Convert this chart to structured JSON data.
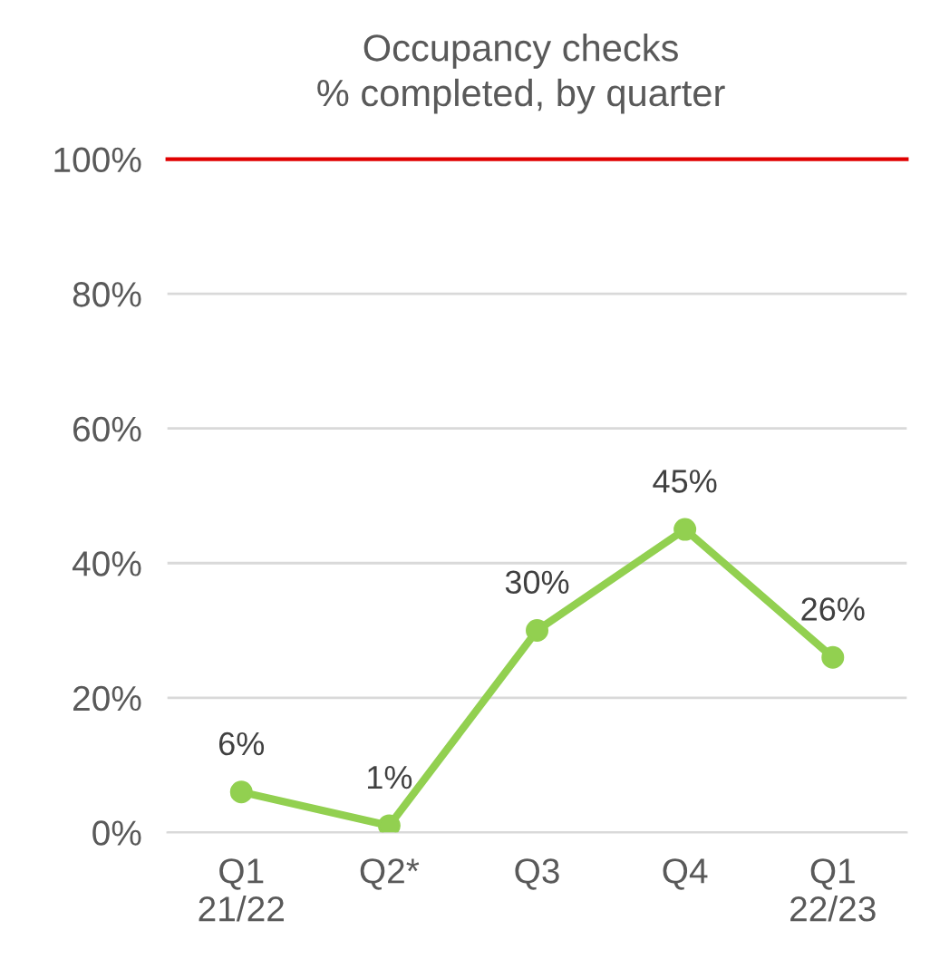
{
  "chart_data": {
    "type": "line",
    "title": "Occupancy checks",
    "subtitle": "% completed, by quarter",
    "categories": [
      "Q1\n21/22",
      "Q2*",
      "Q3",
      "Q4",
      "Q1\n22/23"
    ],
    "series": [
      {
        "color": "#92d050",
        "values": [
          6,
          1,
          30,
          45,
          26
        ],
        "value_labels": [
          "6%",
          "1%",
          "30%",
          "45%",
          "26%"
        ]
      }
    ],
    "ylim": [
      0,
      100
    ],
    "yticks": [
      {
        "value": 0,
        "label": "0%"
      },
      {
        "value": 20,
        "label": "20%"
      },
      {
        "value": 40,
        "label": "40%"
      },
      {
        "value": 60,
        "label": "60%"
      },
      {
        "value": 80,
        "label": "80%"
      },
      {
        "value": 100,
        "label": "100%"
      }
    ],
    "ref_lines": [
      {
        "axis": "y",
        "value": 100,
        "color": "#e00000"
      }
    ],
    "grid": "y",
    "marker": "circle",
    "line_style": "solid",
    "legend": false
  }
}
